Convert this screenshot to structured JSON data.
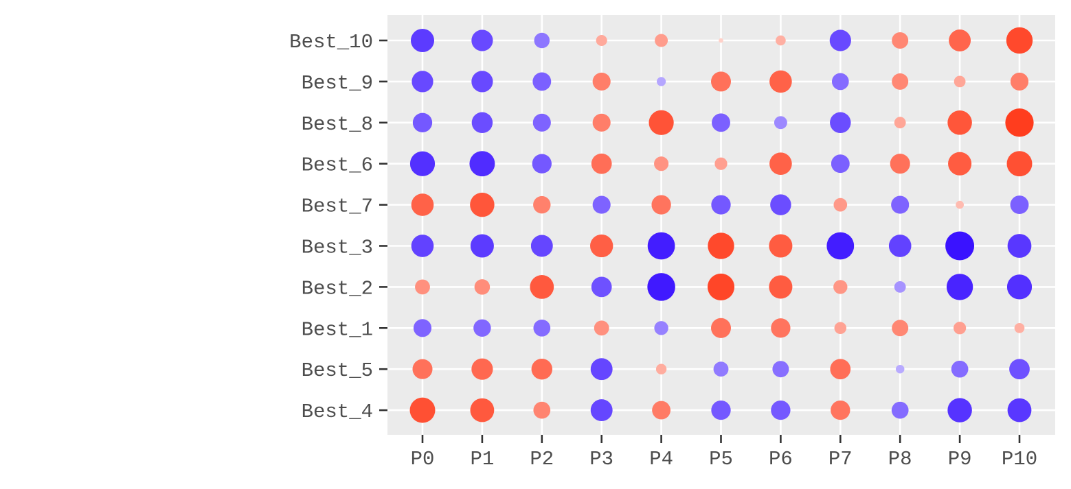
{
  "chart_data": {
    "type": "scatter",
    "subtype": "dot-matrix",
    "title": "",
    "xlabel": "",
    "ylabel": "",
    "grid": true,
    "legend": "none",
    "x_categories": [
      "P0",
      "P1",
      "P2",
      "P3",
      "P4",
      "P5",
      "P6",
      "P7",
      "P8",
      "P9",
      "P10"
    ],
    "y_categories": [
      "Best_10",
      "Best_9",
      "Best_8",
      "Best_6",
      "Best_7",
      "Best_3",
      "Best_2",
      "Best_1",
      "Best_5",
      "Best_4"
    ],
    "value_range": [
      -1,
      1
    ],
    "color_scale": {
      "low": "#3a12ff",
      "mid": "#ffffff",
      "high": "#ff3a1a"
    },
    "values": [
      [
        -0.78,
        -0.7,
        -0.46,
        0.28,
        0.36,
        0.02,
        0.24,
        -0.7,
        0.5,
        0.72,
        0.9
      ],
      [
        -0.7,
        -0.7,
        -0.58,
        0.56,
        -0.2,
        0.64,
        0.74,
        -0.52,
        0.5,
        0.3,
        0.56
      ],
      [
        -0.62,
        -0.68,
        -0.56,
        0.56,
        0.84,
        -0.58,
        -0.36,
        -0.68,
        0.3,
        0.82,
        0.98
      ],
      [
        -0.84,
        -0.86,
        -0.62,
        0.66,
        0.42,
        0.34,
        0.74,
        -0.58,
        0.64,
        0.78,
        0.86
      ],
      [
        0.74,
        0.82,
        0.54,
        -0.56,
        0.62,
        -0.62,
        -0.68,
        0.38,
        -0.56,
        0.16,
        -0.58
      ],
      [
        -0.74,
        -0.78,
        -0.72,
        0.76,
        -0.94,
        0.9,
        0.78,
        -0.94,
        -0.74,
        -1.0,
        -0.8
      ],
      [
        0.44,
        0.46,
        0.8,
        -0.66,
        -0.96,
        0.92,
        0.78,
        0.4,
        -0.3,
        -0.9,
        -0.84
      ],
      [
        -0.56,
        -0.54,
        -0.52,
        0.44,
        -0.4,
        0.64,
        0.62,
        0.32,
        0.5,
        0.34,
        0.24
      ],
      [
        0.64,
        0.7,
        0.68,
        -0.72,
        0.26,
        -0.44,
        -0.5,
        0.66,
        -0.18,
        -0.52,
        -0.66
      ],
      [
        0.86,
        0.8,
        0.52,
        -0.72,
        0.58,
        -0.62,
        -0.62,
        0.62,
        -0.52,
        -0.82,
        -0.8
      ]
    ]
  }
}
